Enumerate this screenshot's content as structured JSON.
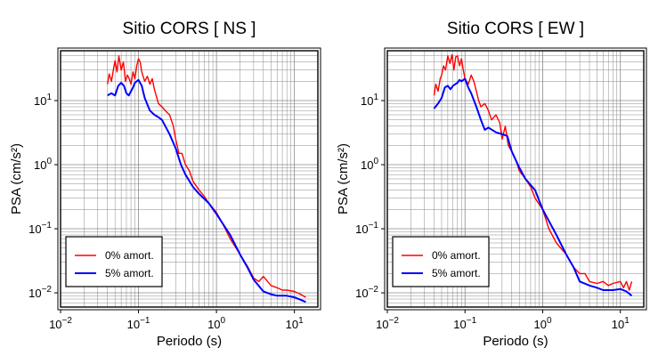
{
  "chart_data": [
    {
      "type": "line",
      "title": "Sitio CORS [ NS ]",
      "xlabel": "Periodo (s)",
      "ylabel": "PSA (cm/s²)",
      "xscale": "log",
      "yscale": "log",
      "xlim": [
        0.01,
        20
      ],
      "ylim": [
        0.006,
        60
      ],
      "grid": true,
      "legend_position": "bottom-left",
      "x_ticks": [
        {
          "base": "10",
          "exp": "−2",
          "value": 0.01
        },
        {
          "base": "10",
          "exp": "−1",
          "value": 0.1
        },
        {
          "base": "10",
          "exp": "0",
          "value": 1
        },
        {
          "base": "10",
          "exp": "1",
          "value": 10
        }
      ],
      "y_ticks": [
        {
          "base": "10",
          "exp": "−2",
          "value": 0.01
        },
        {
          "base": "10",
          "exp": "−1",
          "value": 0.1
        },
        {
          "base": "10",
          "exp": "0",
          "value": 1
        },
        {
          "base": "10",
          "exp": "1",
          "value": 10
        }
      ],
      "series": [
        {
          "name": "0% amort.",
          "color": "#ff0000",
          "x": [
            0.04,
            0.042,
            0.045,
            0.048,
            0.05,
            0.053,
            0.056,
            0.06,
            0.064,
            0.068,
            0.072,
            0.076,
            0.08,
            0.085,
            0.09,
            0.095,
            0.1,
            0.105,
            0.11,
            0.12,
            0.13,
            0.14,
            0.15,
            0.16,
            0.18,
            0.2,
            0.22,
            0.25,
            0.28,
            0.3,
            0.33,
            0.36,
            0.4,
            0.45,
            0.5,
            0.6,
            0.7,
            0.8,
            1.0,
            1.2,
            1.5,
            2.0,
            2.5,
            3.0,
            3.5,
            4.0,
            5.0,
            6.0,
            7.0,
            8.0,
            10.0,
            12.0,
            14.0
          ],
          "y": [
            18,
            26,
            20,
            32,
            42,
            28,
            50,
            30,
            40,
            20,
            25,
            22,
            18,
            28,
            22,
            35,
            45,
            40,
            28,
            20,
            24,
            18,
            22,
            15,
            9,
            8,
            7,
            6,
            4,
            2.5,
            1.5,
            1.5,
            1.0,
            0.8,
            0.55,
            0.4,
            0.32,
            0.25,
            0.18,
            0.12,
            0.07,
            0.04,
            0.026,
            0.017,
            0.015,
            0.018,
            0.013,
            0.012,
            0.011,
            0.011,
            0.0105,
            0.0095,
            0.0085
          ]
        },
        {
          "name": "5% amort.",
          "color": "#0000ff",
          "x": [
            0.04,
            0.045,
            0.05,
            0.055,
            0.06,
            0.065,
            0.07,
            0.075,
            0.08,
            0.085,
            0.09,
            0.1,
            0.11,
            0.12,
            0.14,
            0.16,
            0.18,
            0.2,
            0.25,
            0.3,
            0.35,
            0.4,
            0.5,
            0.6,
            0.8,
            1.0,
            1.5,
            2.0,
            2.5,
            3.0,
            4.0,
            5.0,
            6.0,
            8.0,
            10.0,
            12.0,
            14.0
          ],
          "y": [
            12,
            13,
            12,
            17,
            19,
            17,
            13,
            12,
            14,
            16,
            19,
            21,
            17,
            11,
            7,
            6,
            5.5,
            5,
            3.0,
            1.8,
            1.0,
            0.7,
            0.45,
            0.35,
            0.25,
            0.17,
            0.08,
            0.04,
            0.025,
            0.016,
            0.0105,
            0.0095,
            0.009,
            0.009,
            0.0085,
            0.0078,
            0.0072
          ]
        }
      ]
    },
    {
      "type": "line",
      "title": "Sitio CORS [ EW ]",
      "xlabel": "Periodo (s)",
      "ylabel": "PSA (cm/s²)",
      "xscale": "log",
      "yscale": "log",
      "xlim": [
        0.01,
        20
      ],
      "ylim": [
        0.006,
        60
      ],
      "grid": true,
      "legend_position": "bottom-left",
      "x_ticks": [
        {
          "base": "10",
          "exp": "−2",
          "value": 0.01
        },
        {
          "base": "10",
          "exp": "−1",
          "value": 0.1
        },
        {
          "base": "10",
          "exp": "0",
          "value": 1
        },
        {
          "base": "10",
          "exp": "1",
          "value": 10
        }
      ],
      "y_ticks": [
        {
          "base": "10",
          "exp": "−2",
          "value": 0.01
        },
        {
          "base": "10",
          "exp": "−1",
          "value": 0.1
        },
        {
          "base": "10",
          "exp": "0",
          "value": 1
        },
        {
          "base": "10",
          "exp": "1",
          "value": 10
        }
      ],
      "series": [
        {
          "name": "0% amort.",
          "color": "#ff0000",
          "x": [
            0.04,
            0.042,
            0.045,
            0.048,
            0.05,
            0.053,
            0.056,
            0.06,
            0.064,
            0.068,
            0.072,
            0.076,
            0.08,
            0.085,
            0.09,
            0.095,
            0.1,
            0.11,
            0.12,
            0.13,
            0.14,
            0.15,
            0.16,
            0.18,
            0.2,
            0.22,
            0.25,
            0.28,
            0.3,
            0.33,
            0.36,
            0.4,
            0.45,
            0.5,
            0.6,
            0.7,
            0.8,
            1.0,
            1.2,
            1.5,
            2.0,
            2.5,
            3.0,
            3.5,
            4.0,
            5.0,
            6.0,
            7.0,
            8.0,
            10.0,
            11.0,
            12.0,
            13.0,
            14.0
          ],
          "y": [
            12,
            18,
            14,
            22,
            25,
            35,
            30,
            50,
            38,
            52,
            30,
            48,
            50,
            35,
            45,
            30,
            22,
            18,
            25,
            20,
            14,
            10,
            8,
            9,
            7,
            5,
            6,
            4.5,
            2.5,
            4,
            2.0,
            1.6,
            1.2,
            0.8,
            0.6,
            0.45,
            0.3,
            0.2,
            0.1,
            0.06,
            0.04,
            0.025,
            0.02,
            0.02,
            0.015,
            0.014,
            0.015,
            0.013,
            0.014,
            0.015,
            0.012,
            0.015,
            0.011,
            0.015
          ]
        },
        {
          "name": "5% amort.",
          "color": "#0000ff",
          "x": [
            0.04,
            0.045,
            0.05,
            0.055,
            0.06,
            0.065,
            0.07,
            0.075,
            0.08,
            0.085,
            0.09,
            0.1,
            0.11,
            0.12,
            0.14,
            0.16,
            0.18,
            0.2,
            0.25,
            0.3,
            0.35,
            0.4,
            0.5,
            0.6,
            0.8,
            1.0,
            1.5,
            2.0,
            2.5,
            3.0,
            4.0,
            5.0,
            6.0,
            8.0,
            10.0,
            12.0,
            14.0
          ],
          "y": [
            7.5,
            9,
            11,
            16,
            17,
            15,
            17,
            18,
            19,
            21,
            20,
            22,
            16,
            13,
            8,
            5,
            3.5,
            3.8,
            3.2,
            3.0,
            2.8,
            1.6,
            0.9,
            0.6,
            0.4,
            0.2,
            0.08,
            0.04,
            0.025,
            0.015,
            0.013,
            0.012,
            0.011,
            0.011,
            0.0115,
            0.0105,
            0.009
          ]
        }
      ]
    }
  ]
}
